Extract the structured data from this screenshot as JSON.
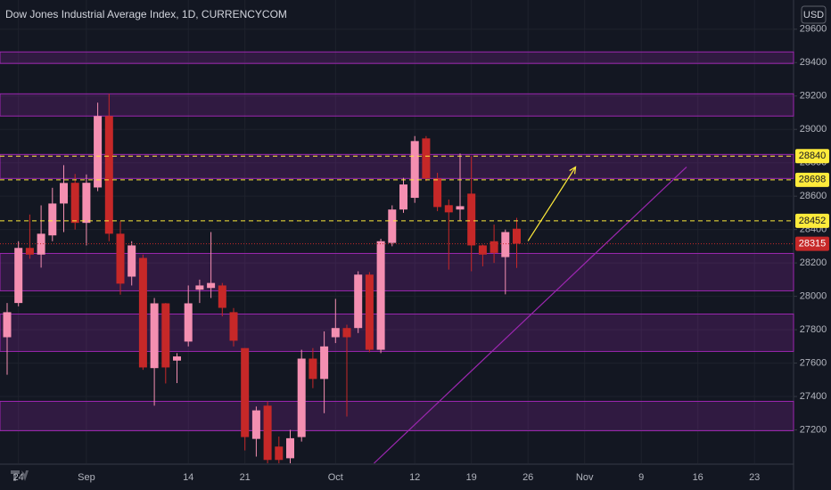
{
  "chart_data": {
    "type": "candlestick",
    "title": "Dow Jones Industrial Average Index, 1D, CURRENCYCOM",
    "currency": "USD",
    "categories": [
      null,
      "24",
      null,
      null,
      null,
      null,
      null,
      "Sep",
      null,
      null,
      null,
      null,
      null,
      null,
      null,
      null,
      "14",
      null,
      null,
      null,
      null,
      "21",
      null,
      null,
      null,
      null,
      null,
      null,
      null,
      "Oct",
      null,
      null,
      null,
      null,
      null,
      null,
      "12",
      null,
      null,
      null,
      null,
      "19",
      null,
      null,
      null,
      null,
      "26",
      null,
      null,
      null,
      null,
      "Nov",
      null,
      null,
      null,
      null,
      "9",
      null,
      null,
      null,
      null,
      "16",
      null,
      null,
      null,
      null,
      "23",
      null,
      null
    ],
    "open": [
      27755,
      27960,
      28290,
      28250,
      28365,
      28556,
      28680,
      28440,
      28652,
      29080,
      28375,
      28118,
      28230,
      27570,
      27958,
      27615,
      27729,
      28040,
      28050,
      28065,
      27905,
      27690,
      27146,
      27345,
      27100,
      27030,
      27157,
      27627,
      27505,
      27755,
      27810,
      27810,
      28130,
      27680,
      28320,
      28520,
      28590,
      28946,
      28706,
      28546,
      28520,
      28615,
      28305,
      28330,
      28235,
      28405,
      null,
      null,
      null,
      null,
      null,
      null,
      null,
      null,
      null,
      null,
      null,
      null,
      null,
      null,
      null,
      null,
      null,
      null,
      null,
      null,
      null,
      null,
      null
    ],
    "high": [
      27960,
      28330,
      28490,
      28545,
      28650,
      28786,
      28733,
      28730,
      29160,
      29213,
      28450,
      28330,
      28250,
      27990,
      27960,
      27660,
      28065,
      28100,
      28385,
      28080,
      27930,
      27690,
      27340,
      27370,
      27160,
      27200,
      27680,
      27690,
      27790,
      27985,
      27830,
      28150,
      28145,
      28345,
      28545,
      28710,
      28960,
      28960,
      28740,
      28580,
      28855,
      28840,
      28310,
      28430,
      28400,
      28470,
      null,
      null,
      null,
      null,
      null,
      null,
      null,
      null,
      null,
      null,
      null,
      null,
      null,
      null,
      null,
      null,
      null,
      null,
      null,
      null,
      null,
      null,
      null
    ],
    "low": [
      27530,
      27940,
      28225,
      28172,
      28330,
      28385,
      28400,
      28305,
      28630,
      28330,
      28010,
      28065,
      27560,
      27345,
      27478,
      27480,
      27700,
      27960,
      27990,
      27880,
      27700,
      27077,
      27040,
      27000,
      27000,
      27000,
      27130,
      27450,
      27300,
      27720,
      27280,
      27780,
      27665,
      27660,
      28300,
      28500,
      28560,
      28690,
      28510,
      28160,
      28450,
      28150,
      28180,
      28200,
      28012,
      28170,
      null,
      null,
      null,
      null,
      null,
      null,
      null,
      null,
      null,
      null,
      null,
      null,
      null,
      null,
      null,
      null,
      null,
      null,
      null,
      null,
      null,
      null,
      null
    ],
    "close": [
      27905,
      28290,
      28250,
      28375,
      28556,
      28679,
      28440,
      28680,
      29080,
      28375,
      28076,
      28305,
      27574,
      27958,
      27574,
      27640,
      27958,
      28065,
      28080,
      27931,
      27734,
      27157,
      27317,
      27020,
      27020,
      27150,
      27627,
      27505,
      27700,
      27810,
      27755,
      28130,
      27680,
      28330,
      28520,
      28670,
      28930,
      28706,
      28535,
      28503,
      28540,
      28305,
      28250,
      28260,
      28385,
      28315,
      null,
      null,
      null,
      null,
      null,
      null,
      null,
      null,
      null,
      null,
      null,
      null,
      null,
      null,
      null,
      null,
      null,
      null,
      null,
      null,
      null,
      null,
      null
    ],
    "up_color": "#f48fb1",
    "down_color": "#c62828",
    "ylim": [
      27000,
      29775
    ],
    "yticks": [
      27200,
      27400,
      27600,
      27800,
      28000,
      28200,
      28400,
      28600,
      28800,
      29000,
      29200,
      29400,
      29600
    ],
    "grid": true,
    "zones": [
      {
        "from": 29395,
        "to": 29464
      },
      {
        "from": 29080,
        "to": 29213
      },
      {
        "from": 28706,
        "to": 28850
      },
      {
        "from": 28033,
        "to": 28257
      },
      {
        "from": 27670,
        "to": 27894
      },
      {
        "from": 27195,
        "to": 27371
      }
    ],
    "zone_color": "#9c27b0",
    "levels": [
      28840,
      28698,
      28452
    ],
    "level_color": "#ffeb3b",
    "last_price": 28315,
    "trendline": {
      "x": [
        32.4,
        60
      ],
      "y": [
        27000,
        28775
      ],
      "color": "#9c27b0"
    },
    "arrow": {
      "x": [
        46,
        50.2
      ],
      "y": [
        28332,
        28775
      ],
      "color": "#ffeb3b"
    }
  }
}
